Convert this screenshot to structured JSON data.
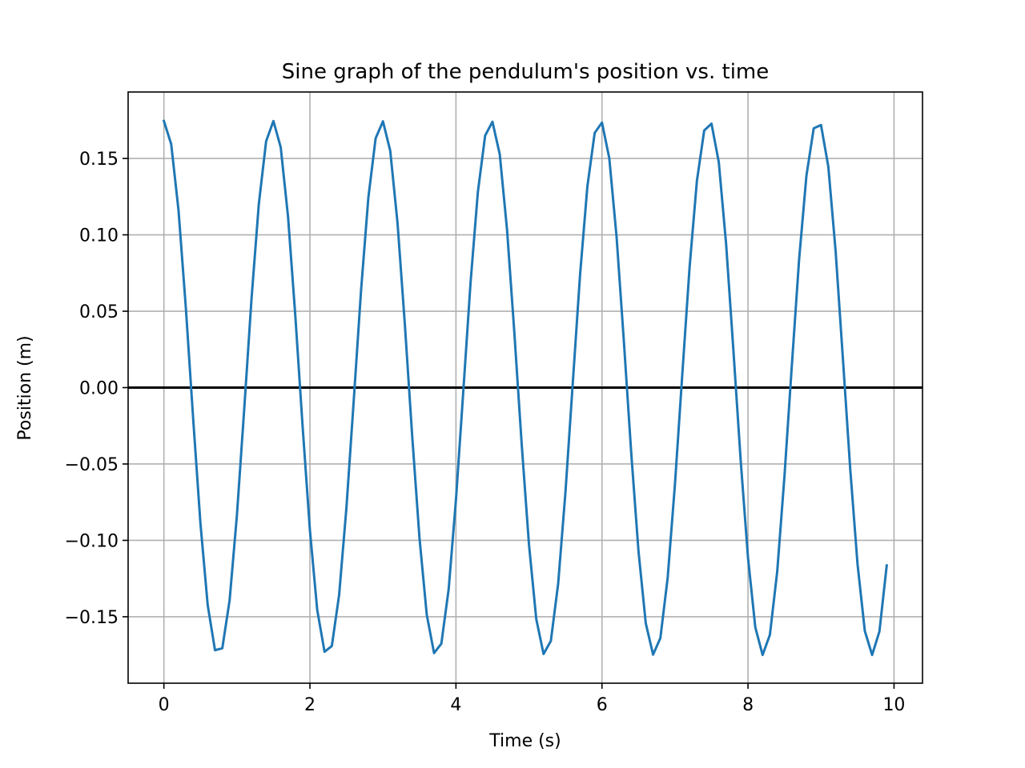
{
  "chart_data": {
    "type": "line",
    "title": "Sine graph of the pendulum's position vs. time",
    "xlabel": "Time (s)",
    "ylabel": "Position (m)",
    "xlim": [
      -0.49,
      10.39
    ],
    "ylim": [
      -0.1935,
      0.1935
    ],
    "grid": true,
    "reference_line_y": 0.0,
    "x_ticks": [
      0,
      2,
      4,
      6,
      8,
      10
    ],
    "x_tick_labels": [
      "0",
      "2",
      "4",
      "6",
      "8",
      "10"
    ],
    "y_ticks": [
      0.15,
      0.1,
      0.05,
      0.0,
      -0.05,
      -0.1,
      -0.15
    ],
    "y_tick_labels": [
      "0.15",
      "0.10",
      "0.05",
      "0.00",
      "−0.05",
      "−0.10",
      "−0.15"
    ],
    "series": [
      {
        "color": "#1f77b4",
        "x": [
          0.0,
          0.1,
          0.2,
          0.3,
          0.4,
          0.5,
          0.6,
          0.7,
          0.8,
          0.9,
          1.0,
          1.1,
          1.2,
          1.3,
          1.4,
          1.5,
          1.6,
          1.7,
          1.8,
          1.9,
          2.0,
          2.1,
          2.2,
          2.3,
          2.4,
          2.5,
          2.6,
          2.7,
          2.8,
          2.9,
          3.0,
          3.1,
          3.2,
          3.3,
          3.4,
          3.5,
          3.6,
          3.7,
          3.8,
          3.9,
          4.0,
          4.1,
          4.2,
          4.3,
          4.4,
          4.5,
          4.6,
          4.7,
          4.8,
          4.9,
          5.0,
          5.1,
          5.2,
          5.3,
          5.4,
          5.5,
          5.6,
          5.7,
          5.8,
          5.9,
          6.0,
          6.1,
          6.2,
          6.3,
          6.4,
          6.5,
          6.6,
          6.7,
          6.8,
          6.9,
          7.0,
          7.1,
          7.2,
          7.3,
          7.4,
          7.5,
          7.6,
          7.7,
          7.8,
          7.9,
          8.0,
          8.1,
          8.2,
          8.3,
          8.4,
          8.5,
          8.6,
          8.7,
          8.8,
          8.9,
          9.0,
          9.1,
          9.2,
          9.3,
          9.4,
          9.5,
          9.6,
          9.7,
          9.8,
          9.9
        ],
        "values": [
          0.1745,
          0.1594,
          0.1162,
          0.0526,
          -0.0198,
          -0.0886,
          -0.1424,
          -0.1719,
          -0.1706,
          -0.1392,
          -0.0836,
          -0.0141,
          0.0581,
          0.1202,
          0.1612,
          0.1745,
          0.1573,
          0.112,
          0.047,
          -0.0255,
          -0.0934,
          -0.1456,
          -0.1729,
          -0.1692,
          -0.1357,
          -0.0786,
          -0.0084,
          0.0634,
          0.1242,
          0.1632,
          0.1743,
          0.155,
          0.1076,
          0.0415,
          -0.0312,
          -0.0981,
          -0.1486,
          -0.1738,
          -0.1676,
          -0.1321,
          -0.0735,
          -0.0028,
          0.0687,
          0.128,
          0.165,
          0.174,
          0.1527,
          0.1032,
          0.0359,
          -0.0368,
          -0.1026,
          -0.1515,
          -0.1744,
          -0.1658,
          -0.1283,
          -0.0683,
          0.0029,
          0.0739,
          0.1316,
          0.1667,
          0.1735,
          0.1502,
          0.0987,
          0.0302,
          -0.0423,
          -0.107,
          -0.1543,
          -0.1748,
          -0.1639,
          -0.1244,
          -0.063,
          0.0086,
          0.0789,
          0.1352,
          0.1683,
          0.1728,
          0.1475,
          0.0941,
          0.0245,
          -0.0478,
          -0.1113,
          -0.1569,
          -0.175,
          -0.1618,
          -0.1205,
          -0.0576,
          0.0142,
          0.0839,
          0.1386,
          0.1697,
          0.1719,
          0.1447,
          0.0894,
          0.0188,
          -0.0532,
          -0.1154,
          -0.1593,
          -0.175,
          -0.1596,
          -0.1164
        ]
      }
    ]
  }
}
